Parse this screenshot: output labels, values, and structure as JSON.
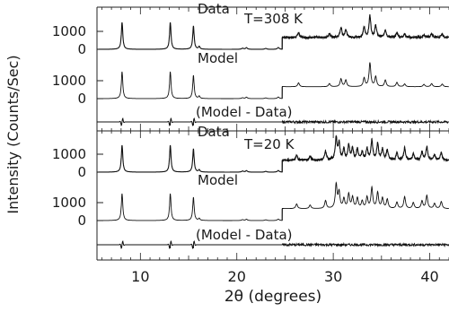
{
  "chart_data": {
    "type": "line",
    "xlabel": "2θ (degrees)",
    "ylabel": "Intensity (Counts/Sec)",
    "xlim": [
      5.5,
      42
    ],
    "x_ticks": [
      10,
      20,
      30,
      40
    ],
    "y_ticks": [
      0,
      1000
    ],
    "grid": false,
    "panels": [
      {
        "label": "T=308 K",
        "series": [
          {
            "name": "Data",
            "baseline": 0,
            "peaks": [
              [
                8.1,
                1500
              ],
              [
                13.1,
                1500
              ],
              [
                15.5,
                1300
              ],
              [
                16.1,
                150
              ],
              [
                20.6,
                60
              ],
              [
                21.0,
                90
              ],
              [
                23.0,
                50
              ],
              [
                24.3,
                100
              ],
              [
                26.4,
                130
              ],
              [
                29.6,
                100
              ],
              [
                30.8,
                250
              ],
              [
                31.3,
                200
              ],
              [
                33.2,
                250
              ],
              [
                33.8,
                550
              ],
              [
                34.4,
                300
              ],
              [
                35.4,
                200
              ],
              [
                36.6,
                120
              ],
              [
                37.4,
                90
              ],
              [
                39.4,
                70
              ],
              [
                40.2,
                100
              ],
              [
                41.3,
                90
              ]
            ],
            "scale_break_at": 24.7,
            "noise": 50
          },
          {
            "name": "Model",
            "baseline": 0,
            "peaks": [
              [
                8.1,
                1500
              ],
              [
                13.1,
                1500
              ],
              [
                15.5,
                1300
              ],
              [
                16.1,
                130
              ],
              [
                20.6,
                50
              ],
              [
                21.0,
                80
              ],
              [
                23.0,
                40
              ],
              [
                24.3,
                90
              ],
              [
                26.4,
                100
              ],
              [
                29.6,
                80
              ],
              [
                30.8,
                200
              ],
              [
                31.3,
                170
              ],
              [
                33.2,
                220
              ],
              [
                33.8,
                600
              ],
              [
                34.4,
                250
              ],
              [
                35.4,
                170
              ],
              [
                36.6,
                110
              ],
              [
                37.4,
                70
              ],
              [
                39.4,
                60
              ],
              [
                40.2,
                80
              ],
              [
                41.3,
                70
              ]
            ],
            "scale_break_at": 24.7,
            "noise": 0
          },
          {
            "name": "(Model - Data)",
            "type": "difference",
            "features": [
              8.1,
              13.1,
              15.5
            ]
          }
        ]
      },
      {
        "label": "T=20 K",
        "series": [
          {
            "name": "Data",
            "baseline": 0,
            "peaks": [
              [
                8.1,
                1500
              ],
              [
                13.1,
                1500
              ],
              [
                15.5,
                1300
              ],
              [
                16.1,
                120
              ],
              [
                20.6,
                60
              ],
              [
                21.0,
                80
              ],
              [
                23.0,
                40
              ],
              [
                24.3,
                90
              ],
              [
                26.2,
                140
              ],
              [
                27.6,
                100
              ],
              [
                29.2,
                220
              ],
              [
                30.3,
                560
              ],
              [
                30.6,
                420
              ],
              [
                31.1,
                260
              ],
              [
                31.6,
                380
              ],
              [
                32.0,
                300
              ],
              [
                32.5,
                280
              ],
              [
                33.0,
                200
              ],
              [
                33.5,
                300
              ],
              [
                34.0,
                500
              ],
              [
                34.6,
                420
              ],
              [
                35.1,
                280
              ],
              [
                35.6,
                250
              ],
              [
                36.6,
                180
              ],
              [
                37.4,
                310
              ],
              [
                38.3,
                160
              ],
              [
                39.2,
                200
              ],
              [
                39.7,
                340
              ],
              [
                40.5,
                140
              ],
              [
                41.2,
                190
              ]
            ],
            "scale_break_at": 24.7,
            "noise": 50
          },
          {
            "name": "Model",
            "baseline": 0,
            "peaks": [
              [
                8.1,
                1500
              ],
              [
                13.1,
                1500
              ],
              [
                15.5,
                1300
              ],
              [
                16.1,
                110
              ],
              [
                20.6,
                50
              ],
              [
                21.0,
                70
              ],
              [
                23.0,
                40
              ],
              [
                24.3,
                80
              ],
              [
                26.2,
                120
              ],
              [
                27.6,
                90
              ],
              [
                29.2,
                200
              ],
              [
                30.3,
                600
              ],
              [
                30.6,
                400
              ],
              [
                31.1,
                240
              ],
              [
                31.6,
                360
              ],
              [
                32.0,
                280
              ],
              [
                32.5,
                260
              ],
              [
                33.0,
                180
              ],
              [
                33.5,
                280
              ],
              [
                34.0,
                520
              ],
              [
                34.6,
                400
              ],
              [
                35.1,
                260
              ],
              [
                35.6,
                230
              ],
              [
                36.6,
                160
              ],
              [
                37.4,
                300
              ],
              [
                38.3,
                150
              ],
              [
                39.2,
                190
              ],
              [
                39.7,
                330
              ],
              [
                40.5,
                130
              ],
              [
                41.2,
                180
              ]
            ],
            "scale_break_at": 24.7,
            "noise": 0
          },
          {
            "name": "(Model - Data)",
            "type": "difference",
            "features": [
              8.1,
              13.1,
              15.5
            ]
          }
        ]
      }
    ]
  }
}
